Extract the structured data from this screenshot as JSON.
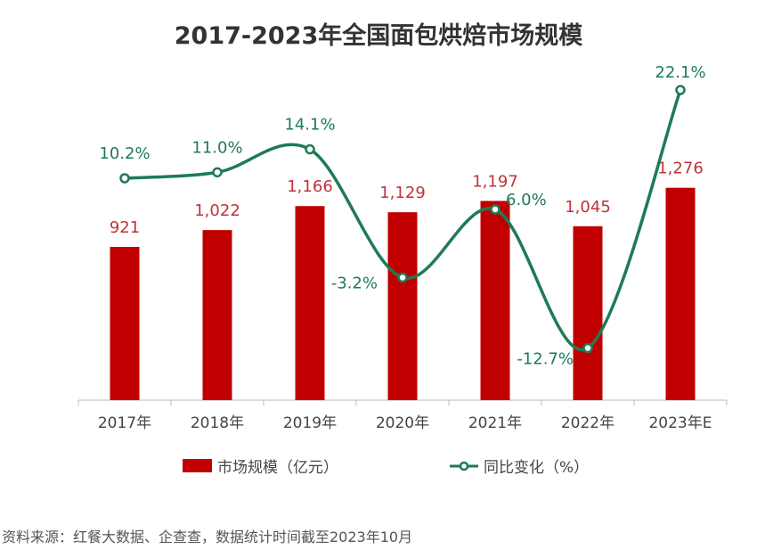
{
  "chart_data": {
    "type": "bar+line",
    "title": "2017-2023年全国面包烘焙市场规模",
    "categories": [
      "2017年",
      "2018年",
      "2019年",
      "2020年",
      "2021年",
      "2022年",
      "2023年E"
    ],
    "series": [
      {
        "name": "市场规模（亿元）",
        "type": "bar",
        "values": [
          921,
          1022,
          1166,
          1129,
          1197,
          1045,
          1276
        ],
        "labels": [
          "921",
          "1,022",
          "1,166",
          "1,129",
          "1,197",
          "1,045",
          "1,276"
        ],
        "color": "#C00000"
      },
      {
        "name": "同比变化（%）",
        "type": "line",
        "values": [
          10.2,
          11.0,
          14.1,
          -3.2,
          6.0,
          -12.7,
          22.1
        ],
        "labels": [
          "10.2%",
          "11.0%",
          "14.1%",
          "-3.2%",
          "6.0%",
          "-12.7%",
          "22.1%"
        ],
        "color": "#1E7B55"
      }
    ],
    "legend_position": "bottom",
    "grid": false
  },
  "source": "资料来源：红餐大数据、企查查，数据统计时间截至2023年10月"
}
